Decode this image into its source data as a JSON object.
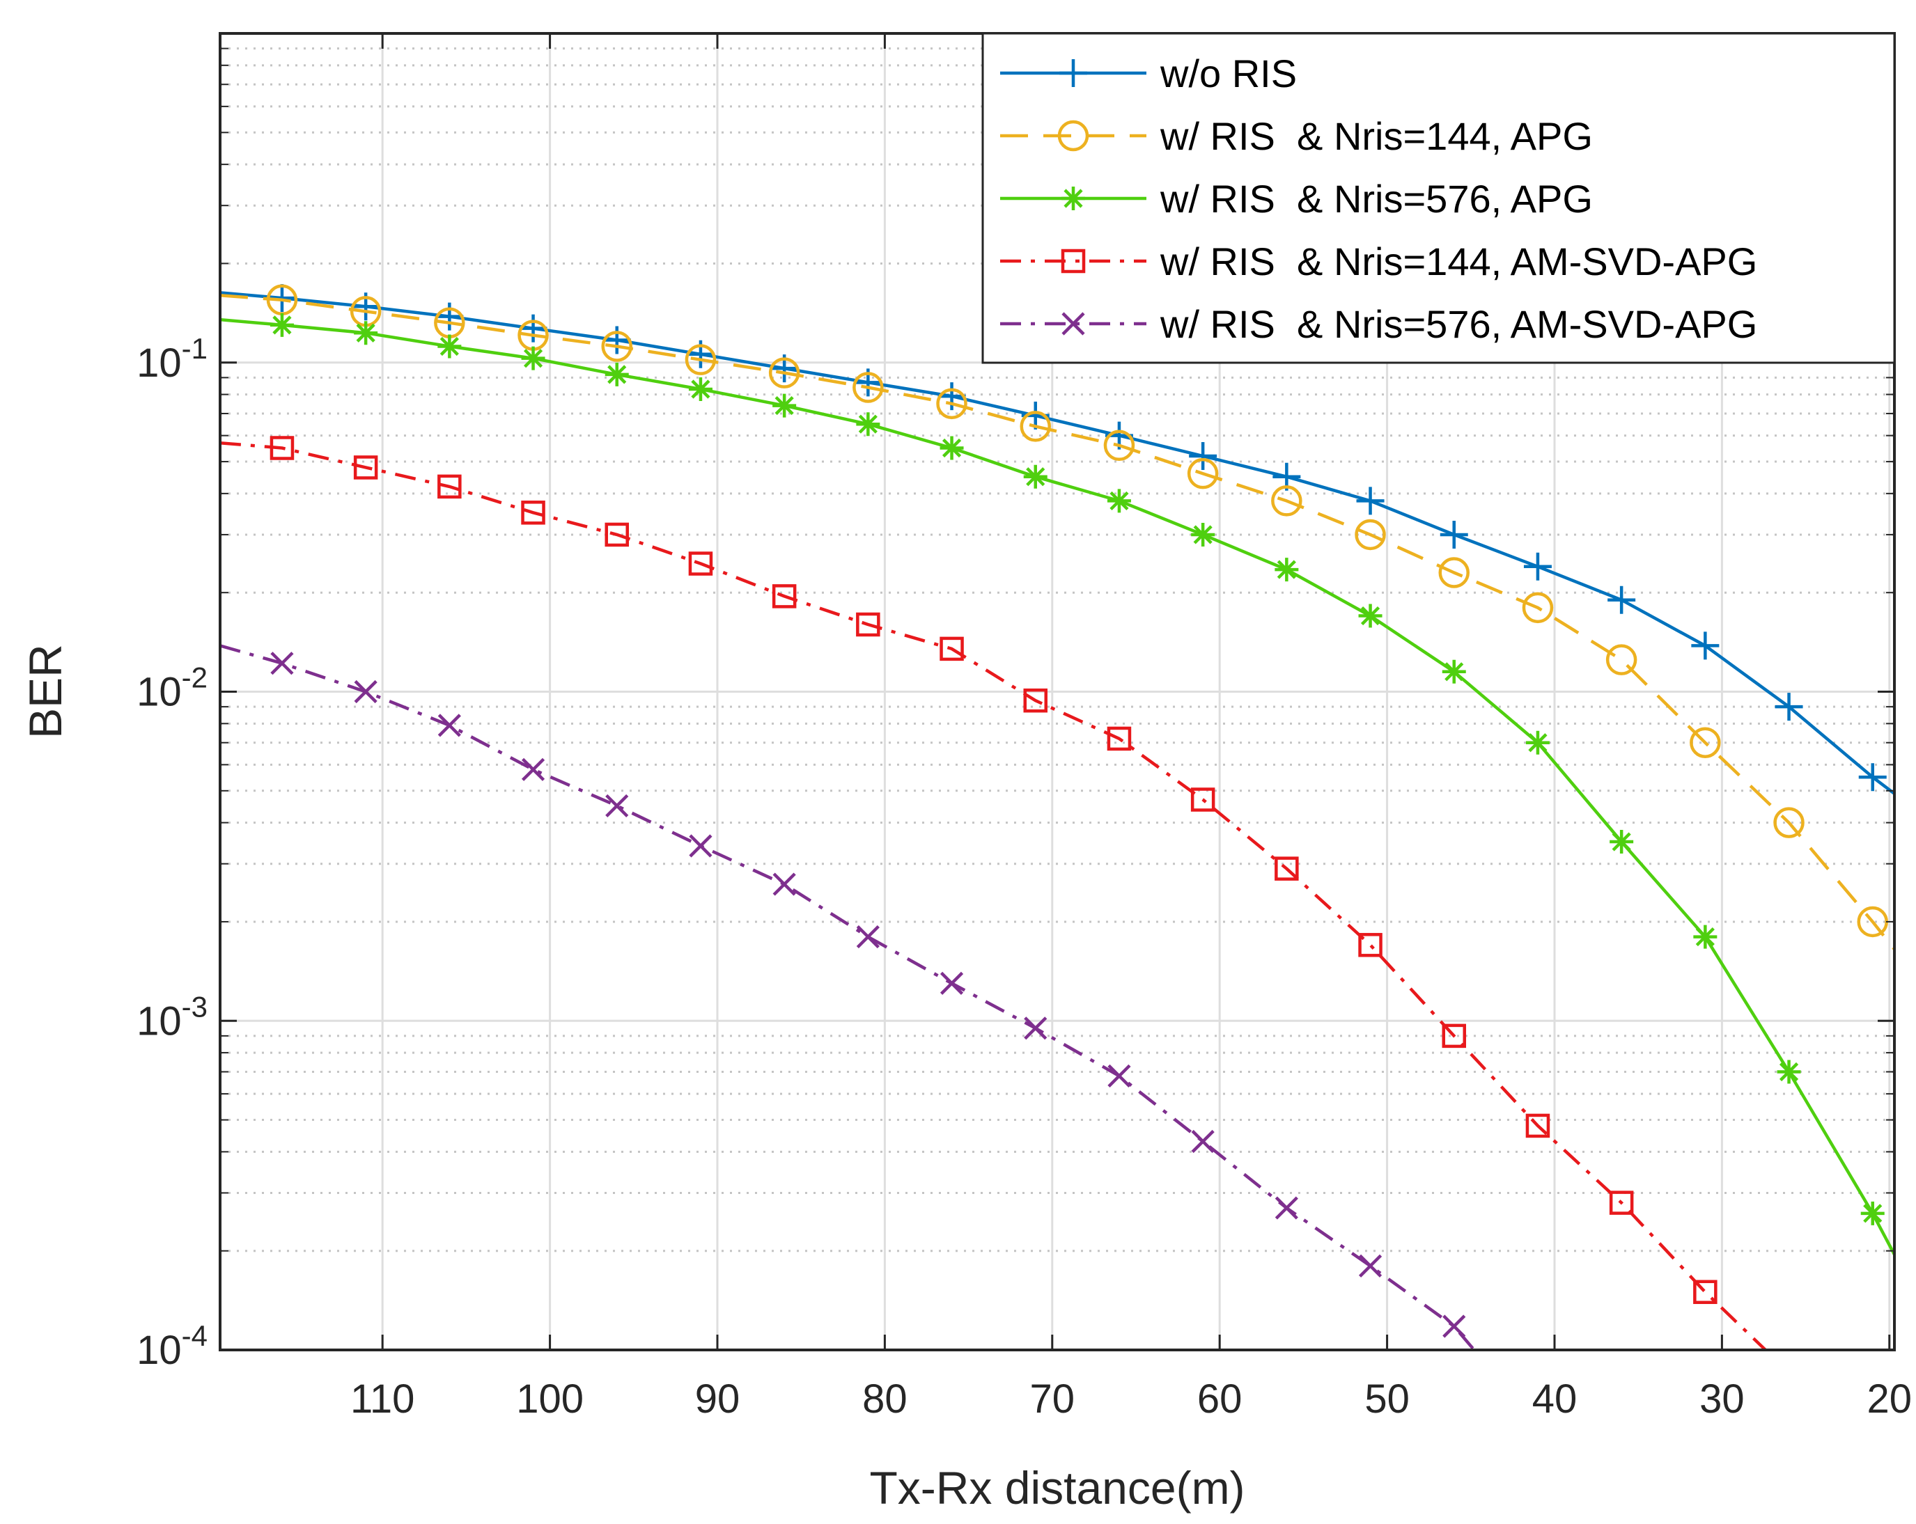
{
  "chart_data": {
    "type": "line",
    "title": "",
    "xlabel": "Tx-Rx distance(m)",
    "ylabel": "BER",
    "xscale": "linear",
    "x_reversed": true,
    "yscale": "log",
    "xlim": [
      119.7,
      19.7
    ],
    "ylim": [
      0.0001,
      1
    ],
    "grid": true,
    "legend_position": "top-right",
    "x_ticks": [
      110,
      100,
      90,
      80,
      70,
      60,
      50,
      40,
      30,
      20
    ],
    "x_tick_labels": [
      "110",
      "100",
      "90",
      "80",
      "70",
      "60",
      "50",
      "40",
      "30",
      "20"
    ],
    "y_ticks": [
      {
        "value": 0.1,
        "base": "10",
        "exp": "-1"
      },
      {
        "value": 0.01,
        "base": "10",
        "exp": "-2"
      },
      {
        "value": 0.001,
        "base": "10",
        "exp": "-3"
      },
      {
        "value": 0.0001,
        "base": "10",
        "exp": "-4"
      }
    ],
    "series": [
      {
        "name": "w/o RIS",
        "color": "#0072BD",
        "dash": "none",
        "marker": "plus",
        "x": [
          119.7,
          116,
          111,
          106,
          101,
          96,
          91,
          86,
          81,
          76,
          71,
          66,
          61,
          56,
          51,
          46,
          41,
          36,
          31,
          26,
          21,
          19.7
        ],
        "values": [
          0.163,
          0.157,
          0.148,
          0.138,
          0.127,
          0.117,
          0.106,
          0.096,
          0.087,
          0.079,
          0.069,
          0.06,
          0.052,
          0.045,
          0.038,
          0.03,
          0.024,
          0.019,
          0.0138,
          0.009,
          0.0055,
          0.0049
        ]
      },
      {
        "name": "w/ RIS  & Nris=144, APG",
        "color": "#EDB120",
        "dash": "dashed",
        "marker": "circle",
        "x": [
          119.7,
          116,
          111,
          106,
          101,
          96,
          91,
          86,
          81,
          76,
          71,
          66,
          61,
          56,
          51,
          46,
          41,
          36,
          31,
          26,
          21,
          19.7
        ],
        "values": [
          0.16,
          0.155,
          0.143,
          0.132,
          0.121,
          0.112,
          0.102,
          0.093,
          0.084,
          0.075,
          0.064,
          0.056,
          0.046,
          0.038,
          0.03,
          0.023,
          0.018,
          0.0125,
          0.007,
          0.004,
          0.002,
          0.00165
        ]
      },
      {
        "name": "w/ RIS  & Nris=576, APG",
        "color": "#4FCF0F",
        "dash": "none",
        "marker": "asterisk",
        "x": [
          119.7,
          116,
          111,
          106,
          101,
          96,
          91,
          86,
          81,
          76,
          71,
          66,
          61,
          56,
          51,
          46,
          41,
          36,
          31,
          26,
          21,
          19.7
        ],
        "values": [
          0.135,
          0.13,
          0.123,
          0.112,
          0.103,
          0.092,
          0.083,
          0.074,
          0.065,
          0.055,
          0.045,
          0.038,
          0.03,
          0.0235,
          0.017,
          0.0115,
          0.007,
          0.0035,
          0.0018,
          0.0007,
          0.00026,
          0.000195
        ]
      },
      {
        "name": "w/ RIS  & Nris=144, AM-SVD-APG",
        "color": "#E8191C",
        "dash": "dashdot",
        "marker": "square",
        "x": [
          119.7,
          116,
          111,
          106,
          101,
          96,
          91,
          86,
          81,
          76,
          71,
          66,
          61,
          56,
          51,
          46,
          41,
          36,
          31,
          27.4
        ],
        "values": [
          0.057,
          0.055,
          0.048,
          0.042,
          0.035,
          0.03,
          0.0245,
          0.0195,
          0.016,
          0.0135,
          0.0094,
          0.0072,
          0.0047,
          0.0029,
          0.0017,
          0.0009,
          0.00048,
          0.00028,
          0.00015,
          0.0001
        ]
      },
      {
        "name": "w/ RIS  & Nris=576, AM-SVD-APG",
        "color": "#7E2F8E",
        "dash": "dashdot",
        "marker": "x",
        "x": [
          119.7,
          116,
          111,
          106,
          101,
          96,
          91,
          86,
          81,
          76,
          71,
          66,
          61,
          56,
          51,
          46,
          44.8
        ],
        "values": [
          0.0138,
          0.0122,
          0.01,
          0.0079,
          0.0058,
          0.0045,
          0.0034,
          0.0026,
          0.0018,
          0.0013,
          0.00095,
          0.00068,
          0.00043,
          0.00027,
          0.00018,
          0.000118,
          0.0001
        ]
      }
    ]
  }
}
